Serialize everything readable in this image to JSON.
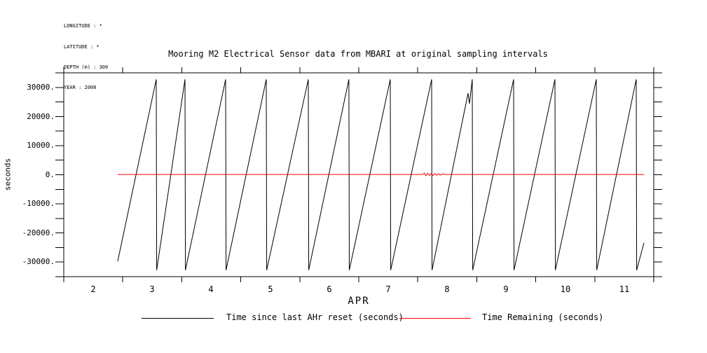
{
  "header": {
    "lines": [
      "LONGITUDE : *",
      "LATITUDE : *",
      "DEPTH (m) : 300",
      "YEAR : 2008"
    ]
  },
  "chart_data": {
    "type": "line",
    "title": "Mooring M2 Electrical Sensor data from MBARI at original sampling intervals",
    "xlabel": "APR",
    "ylabel": "seconds",
    "x_unit": "day of month (APR 2008)",
    "xlim": [
      1.5,
      11.5
    ],
    "ylim": [
      -35000,
      35000
    ],
    "x_ticks": [
      1.5,
      2.5,
      3.5,
      4.5,
      5.5,
      6.5,
      7.5,
      8.5,
      9.5,
      10.5,
      11.5
    ],
    "x_tick_day_labels": [
      "2",
      "3",
      "4",
      "5",
      "6",
      "7",
      "8",
      "9",
      "10",
      "11"
    ],
    "y_tick_step": 5000,
    "y_axis_labels": [
      {
        "value": 30000,
        "text": "30000."
      },
      {
        "value": 20000,
        "text": "20000."
      },
      {
        "value": 10000,
        "text": "10000."
      },
      {
        "value": 0,
        "text": "0."
      },
      {
        "value": -10000,
        "text": "-10000."
      },
      {
        "value": -20000,
        "text": "-20000."
      },
      {
        "value": -30000,
        "text": "-30000."
      }
    ],
    "grid": false,
    "legend_position": "bottom",
    "series": [
      {
        "name": "Time since last AHr reset (seconds)",
        "color": "#000000",
        "shape": "sawtooth (16-bit counter wrap: rises to +32767, wraps to -32768)",
        "points": [
          [
            2.414,
            -29700
          ],
          [
            3.068,
            32767
          ],
          [
            3.075,
            -32768
          ],
          [
            3.555,
            32767
          ],
          [
            3.562,
            -32768
          ],
          [
            4.243,
            32767
          ],
          [
            4.25,
            -32768
          ],
          [
            4.932,
            32767
          ],
          [
            4.939,
            -32768
          ],
          [
            5.645,
            32767
          ],
          [
            5.652,
            -32768
          ],
          [
            6.333,
            32767
          ],
          [
            6.34,
            -32768
          ],
          [
            7.034,
            32767
          ],
          [
            7.041,
            -32768
          ],
          [
            7.735,
            32767
          ],
          [
            7.742,
            -32768
          ],
          [
            8.353,
            28000
          ],
          [
            8.377,
            24400
          ],
          [
            8.424,
            32767
          ],
          [
            8.431,
            -32768
          ],
          [
            9.125,
            32767
          ],
          [
            9.132,
            -32768
          ],
          [
            9.825,
            32767
          ],
          [
            9.832,
            -32768
          ],
          [
            10.526,
            32767
          ],
          [
            10.533,
            -32768
          ],
          [
            11.203,
            32767
          ],
          [
            11.21,
            -32768
          ],
          [
            11.334,
            -23400
          ]
        ]
      },
      {
        "name": "Time Remaining (seconds)",
        "color": "#ff0000",
        "shape": "near-constant at ~0 with small oscillation near day 7.6-8.0",
        "points": [
          [
            2.414,
            100
          ],
          [
            7.58,
            100
          ],
          [
            7.61,
            550
          ],
          [
            7.64,
            -350
          ],
          [
            7.67,
            500
          ],
          [
            7.7,
            -300
          ],
          [
            7.73,
            450
          ],
          [
            7.76,
            -250
          ],
          [
            7.79,
            400
          ],
          [
            7.82,
            -200
          ],
          [
            7.85,
            350
          ],
          [
            7.88,
            -150
          ],
          [
            7.92,
            300
          ],
          [
            7.96,
            100
          ],
          [
            11.334,
            100
          ]
        ]
      }
    ]
  }
}
